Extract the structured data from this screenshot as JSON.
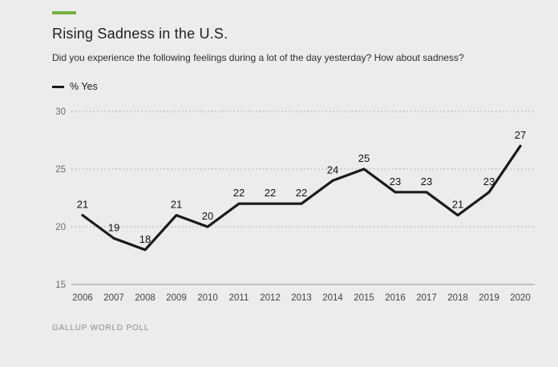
{
  "page": {
    "title": "Rising Sadness in the U.S.",
    "subtitle": "Did you experience the following feelings during a lot of the day yesterday? How about sadness?",
    "source": "GALLUP WORLD POLL",
    "accent_color": "#76b041"
  },
  "legend": {
    "label": "% Yes",
    "line_color": "#1a1a1a"
  },
  "chart_data": {
    "type": "line",
    "title": "Rising Sadness in the U.S.",
    "x": [
      2006,
      2007,
      2008,
      2009,
      2010,
      2011,
      2012,
      2013,
      2014,
      2015,
      2016,
      2017,
      2018,
      2019,
      2020
    ],
    "series": [
      {
        "name": "% Yes",
        "values": [
          21,
          19,
          18,
          21,
          20,
          22,
          22,
          22,
          24,
          25,
          23,
          23,
          21,
          23,
          27
        ]
      }
    ],
    "ylim": [
      15,
      30
    ],
    "yticks": [
      15,
      20,
      25,
      30
    ],
    "grid": "horizontal-dotted",
    "baseline_tick": 15,
    "legend_position": "top-left",
    "line_color": "#1a1a1a",
    "label_color": "#111111",
    "grid_color": "#9a9a9a",
    "axis_color": "#a5a5a5",
    "tick_label_color": "#6e6e6e",
    "x_label_color": "#444444"
  }
}
